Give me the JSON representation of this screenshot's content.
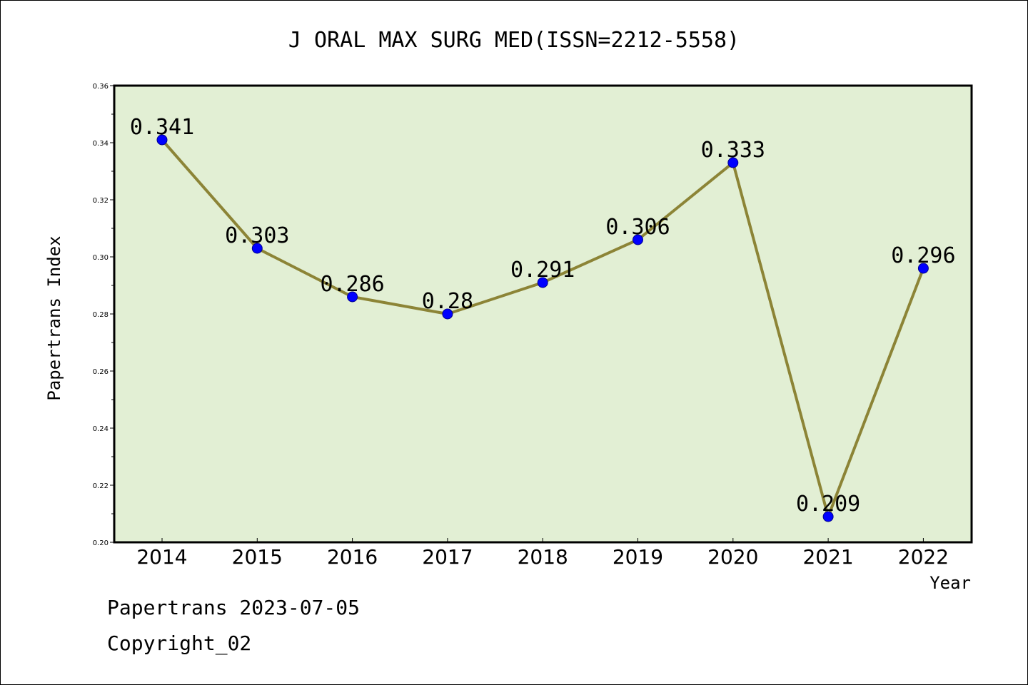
{
  "chart_data": {
    "type": "line",
    "title": "J ORAL MAX SURG MED(ISSN=2212-5558)",
    "xlabel": "Year",
    "ylabel": "Papertrans Index",
    "categories": [
      "2014",
      "2015",
      "2016",
      "2017",
      "2018",
      "2019",
      "2020",
      "2021",
      "2022"
    ],
    "values": [
      0.341,
      0.303,
      0.286,
      0.28,
      0.291,
      0.306,
      0.333,
      0.209,
      0.296
    ],
    "data_labels": [
      "0.341",
      "0.303",
      "0.286",
      "0.28",
      "0.291",
      "0.306",
      "0.333",
      "0.209",
      "0.296"
    ],
    "ylim": [
      0.2,
      0.36
    ],
    "yticks": [
      "0.20",
      "0.22",
      "0.24",
      "0.26",
      "0.28",
      "0.30",
      "0.32",
      "0.34",
      "0.36"
    ],
    "grid": false,
    "colors": {
      "plot_background": "#e2efd4",
      "line": "#8c8436",
      "marker": "#0000ff"
    }
  },
  "footer": {
    "line1": "Papertrans 2023-07-05",
    "line2": "Copyright_02"
  }
}
